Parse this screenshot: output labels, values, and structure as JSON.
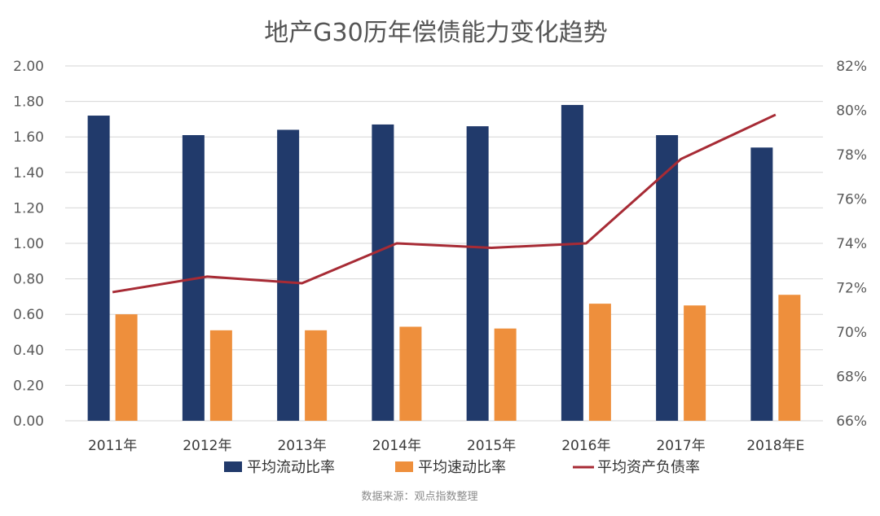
{
  "chart_data": {
    "type": "bar",
    "title": "地产G30历年偿债能力变化趋势",
    "categories": [
      "2011年",
      "2012年",
      "2013年",
      "2014年",
      "2015年",
      "2016年",
      "2017年",
      "2018年E"
    ],
    "y_left": {
      "min": 0,
      "max": 2,
      "ticks": [
        "0.00",
        "0.20",
        "0.40",
        "0.60",
        "0.80",
        "1.00",
        "1.20",
        "1.40",
        "1.60",
        "1.80",
        "2.00"
      ]
    },
    "y_right": {
      "min": 66,
      "max": 82,
      "ticks": [
        "66%",
        "68%",
        "70%",
        "72%",
        "74%",
        "76%",
        "78%",
        "80%",
        "82%"
      ]
    },
    "grid": true,
    "legend_position": "bottom",
    "series": [
      {
        "name": "平均流动比率",
        "kind": "bar",
        "axis": "left",
        "color": "#213a6b",
        "values": [
          1.72,
          1.61,
          1.64,
          1.67,
          1.66,
          1.78,
          1.61,
          1.54
        ]
      },
      {
        "name": "平均速动比率",
        "kind": "bar",
        "axis": "left",
        "color": "#ee8f3c",
        "values": [
          0.6,
          0.51,
          0.51,
          0.53,
          0.52,
          0.66,
          0.65,
          0.71
        ]
      },
      {
        "name": "平均资产负债率",
        "kind": "line",
        "axis": "right",
        "color": "#a72b35",
        "values": [
          71.8,
          72.5,
          72.2,
          74.0,
          73.8,
          74.0,
          77.8,
          79.8
        ]
      }
    ],
    "source": "数据来源：观点指数整理"
  }
}
